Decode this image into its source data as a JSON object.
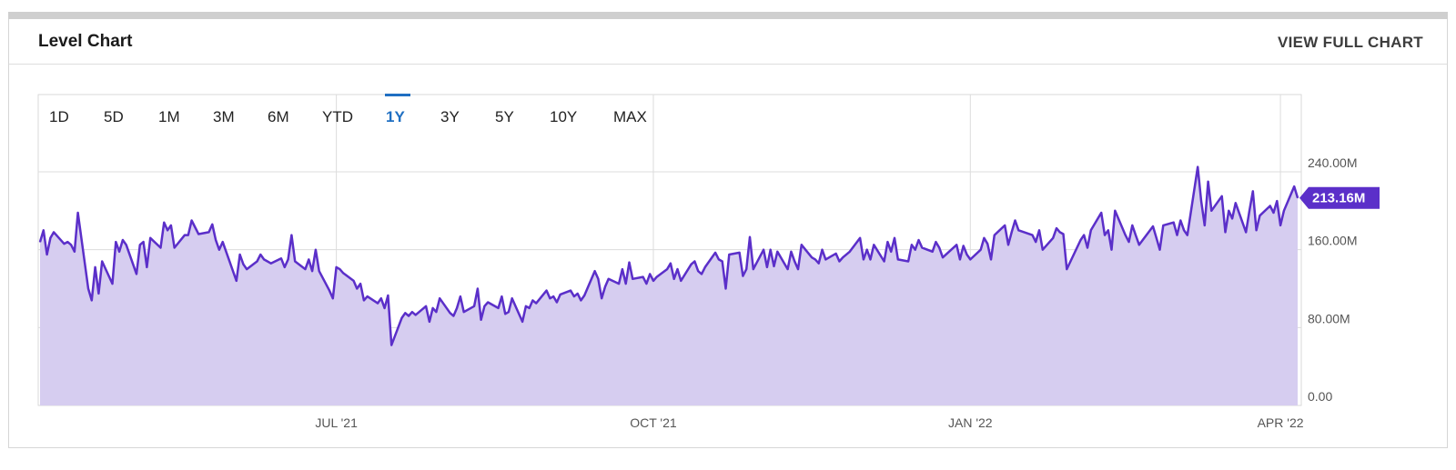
{
  "header": {
    "title": "Level Chart",
    "full_chart_label": "VIEW FULL CHART"
  },
  "range_buttons": [
    {
      "label": "1D",
      "active": false
    },
    {
      "label": "5D",
      "active": false
    },
    {
      "label": "1M",
      "active": false
    },
    {
      "label": "3M",
      "active": false
    },
    {
      "label": "6M",
      "active": false
    },
    {
      "label": "YTD",
      "active": false
    },
    {
      "label": "1Y",
      "active": true
    },
    {
      "label": "3Y",
      "active": false
    },
    {
      "label": "5Y",
      "active": false
    },
    {
      "label": "10Y",
      "active": false
    },
    {
      "label": "MAX",
      "active": false
    }
  ],
  "colors": {
    "line": "#5b2fc9",
    "fill": "#d6cdf0",
    "badge": "#5b2fc9",
    "active_range": "#1f6fc2",
    "grid": "#dcdcdc"
  },
  "chart_data": {
    "type": "area",
    "title": "",
    "xlabel": "",
    "ylabel": "",
    "ylim": [
      0,
      240000000
    ],
    "yticks": [
      {
        "value": 240000000,
        "label": "240.00M"
      },
      {
        "value": 160000000,
        "label": "160.00M"
      },
      {
        "value": 80000000,
        "label": "80.00M"
      },
      {
        "value": 0,
        "label": "0.00"
      }
    ],
    "xticks": [
      {
        "date": "2021-06-30",
        "label": "JUL '21"
      },
      {
        "date": "2021-09-30",
        "label": "OCT '21"
      },
      {
        "date": "2021-12-31",
        "label": "JAN '22"
      },
      {
        "date": "2022-03-31",
        "label": "APR '22"
      }
    ],
    "xlim": [
      "2021-04-05",
      "2022-04-05"
    ],
    "grid": true,
    "last_value_label": "213.16M",
    "series": [
      {
        "values": [
          [
            "2021-04-05",
            168
          ],
          [
            "2021-04-06",
            180
          ],
          [
            "2021-04-07",
            155
          ],
          [
            "2021-04-08",
            172
          ],
          [
            "2021-04-09",
            178
          ],
          [
            "2021-04-12",
            166
          ],
          [
            "2021-04-13",
            168
          ],
          [
            "2021-04-14",
            165
          ],
          [
            "2021-04-15",
            158
          ],
          [
            "2021-04-16",
            198
          ],
          [
            "2021-04-19",
            120
          ],
          [
            "2021-04-20",
            108
          ],
          [
            "2021-04-21",
            142
          ],
          [
            "2021-04-22",
            115
          ],
          [
            "2021-04-23",
            148
          ],
          [
            "2021-04-26",
            125
          ],
          [
            "2021-04-27",
            168
          ],
          [
            "2021-04-28",
            158
          ],
          [
            "2021-04-29",
            170
          ],
          [
            "2021-04-30",
            165
          ],
          [
            "2021-05-03",
            135
          ],
          [
            "2021-05-04",
            165
          ],
          [
            "2021-05-05",
            168
          ],
          [
            "2021-05-06",
            142
          ],
          [
            "2021-05-07",
            172
          ],
          [
            "2021-05-10",
            162
          ],
          [
            "2021-05-11",
            188
          ],
          [
            "2021-05-12",
            180
          ],
          [
            "2021-05-13",
            185
          ],
          [
            "2021-05-14",
            162
          ],
          [
            "2021-05-17",
            175
          ],
          [
            "2021-05-18",
            175
          ],
          [
            "2021-05-19",
            190
          ],
          [
            "2021-05-20",
            183
          ],
          [
            "2021-05-21",
            176
          ],
          [
            "2021-05-24",
            178
          ],
          [
            "2021-05-25",
            186
          ],
          [
            "2021-05-26",
            170
          ],
          [
            "2021-05-27",
            160
          ],
          [
            "2021-05-28",
            168
          ],
          [
            "2021-06-01",
            128
          ],
          [
            "2021-06-02",
            155
          ],
          [
            "2021-06-03",
            145
          ],
          [
            "2021-06-04",
            140
          ],
          [
            "2021-06-07",
            148
          ],
          [
            "2021-06-08",
            155
          ],
          [
            "2021-06-09",
            150
          ],
          [
            "2021-06-10",
            148
          ],
          [
            "2021-06-11",
            146
          ],
          [
            "2021-06-14",
            151
          ],
          [
            "2021-06-15",
            142
          ],
          [
            "2021-06-16",
            150
          ],
          [
            "2021-06-17",
            175
          ],
          [
            "2021-06-18",
            148
          ],
          [
            "2021-06-21",
            140
          ],
          [
            "2021-06-22",
            150
          ],
          [
            "2021-06-23",
            138
          ],
          [
            "2021-06-24",
            160
          ],
          [
            "2021-06-25",
            138
          ],
          [
            "2021-06-28",
            118
          ],
          [
            "2021-06-29",
            110
          ],
          [
            "2021-06-30",
            142
          ],
          [
            "2021-07-01",
            140
          ],
          [
            "2021-07-02",
            136
          ],
          [
            "2021-07-05",
            128
          ],
          [
            "2021-07-06",
            120
          ],
          [
            "2021-07-07",
            125
          ],
          [
            "2021-07-08",
            108
          ],
          [
            "2021-07-09",
            112
          ],
          [
            "2021-07-12",
            105
          ],
          [
            "2021-07-13",
            110
          ],
          [
            "2021-07-14",
            100
          ],
          [
            "2021-07-15",
            113
          ],
          [
            "2021-07-16",
            62
          ],
          [
            "2021-07-19",
            90
          ],
          [
            "2021-07-20",
            95
          ],
          [
            "2021-07-21",
            92
          ],
          [
            "2021-07-22",
            96
          ],
          [
            "2021-07-23",
            93
          ],
          [
            "2021-07-26",
            102
          ],
          [
            "2021-07-27",
            86
          ],
          [
            "2021-07-28",
            100
          ],
          [
            "2021-07-29",
            96
          ],
          [
            "2021-07-30",
            110
          ],
          [
            "2021-08-02",
            95
          ],
          [
            "2021-08-03",
            92
          ],
          [
            "2021-08-04",
            100
          ],
          [
            "2021-08-05",
            112
          ],
          [
            "2021-08-06",
            96
          ],
          [
            "2021-08-09",
            102
          ],
          [
            "2021-08-10",
            120
          ],
          [
            "2021-08-11",
            88
          ],
          [
            "2021-08-12",
            102
          ],
          [
            "2021-08-13",
            106
          ],
          [
            "2021-08-16",
            100
          ],
          [
            "2021-08-17",
            112
          ],
          [
            "2021-08-18",
            94
          ],
          [
            "2021-08-19",
            96
          ],
          [
            "2021-08-20",
            110
          ],
          [
            "2021-08-23",
            86
          ],
          [
            "2021-08-24",
            102
          ],
          [
            "2021-08-25",
            100
          ],
          [
            "2021-08-26",
            108
          ],
          [
            "2021-08-27",
            105
          ],
          [
            "2021-08-30",
            118
          ],
          [
            "2021-08-31",
            110
          ],
          [
            "2021-09-01",
            112
          ],
          [
            "2021-09-02",
            106
          ],
          [
            "2021-09-03",
            114
          ],
          [
            "2021-09-06",
            118
          ],
          [
            "2021-09-07",
            112
          ],
          [
            "2021-09-08",
            115
          ],
          [
            "2021-09-09",
            108
          ],
          [
            "2021-09-10",
            113
          ],
          [
            "2021-09-13",
            138
          ],
          [
            "2021-09-14",
            130
          ],
          [
            "2021-09-15",
            110
          ],
          [
            "2021-09-16",
            122
          ],
          [
            "2021-09-17",
            130
          ],
          [
            "2021-09-20",
            125
          ],
          [
            "2021-09-21",
            140
          ],
          [
            "2021-09-22",
            125
          ],
          [
            "2021-09-23",
            147
          ],
          [
            "2021-09-24",
            130
          ],
          [
            "2021-09-27",
            132
          ],
          [
            "2021-09-28",
            125
          ],
          [
            "2021-09-29",
            135
          ],
          [
            "2021-09-30",
            128
          ],
          [
            "2021-10-01",
            132
          ],
          [
            "2021-10-04",
            140
          ],
          [
            "2021-10-05",
            146
          ],
          [
            "2021-10-06",
            130
          ],
          [
            "2021-10-07",
            140
          ],
          [
            "2021-10-08",
            128
          ],
          [
            "2021-10-11",
            145
          ],
          [
            "2021-10-12",
            148
          ],
          [
            "2021-10-13",
            138
          ],
          [
            "2021-10-14",
            135
          ],
          [
            "2021-10-15",
            142
          ],
          [
            "2021-10-18",
            157
          ],
          [
            "2021-10-19",
            150
          ],
          [
            "2021-10-20",
            148
          ],
          [
            "2021-10-21",
            120
          ],
          [
            "2021-10-22",
            155
          ],
          [
            "2021-10-25",
            157
          ],
          [
            "2021-10-26",
            133
          ],
          [
            "2021-10-27",
            140
          ],
          [
            "2021-10-28",
            173
          ],
          [
            "2021-10-29",
            140
          ],
          [
            "2021-11-01",
            160
          ],
          [
            "2021-11-02",
            142
          ],
          [
            "2021-11-03",
            160
          ],
          [
            "2021-11-04",
            143
          ],
          [
            "2021-11-05",
            158
          ],
          [
            "2021-11-08",
            140
          ],
          [
            "2021-11-09",
            158
          ],
          [
            "2021-11-10",
            148
          ],
          [
            "2021-11-11",
            140
          ],
          [
            "2021-11-12",
            165
          ],
          [
            "2021-11-15",
            152
          ],
          [
            "2021-11-16",
            150
          ],
          [
            "2021-11-17",
            146
          ],
          [
            "2021-11-18",
            160
          ],
          [
            "2021-11-19",
            150
          ],
          [
            "2021-11-22",
            156
          ],
          [
            "2021-11-23",
            148
          ],
          [
            "2021-11-24",
            152
          ],
          [
            "2021-11-26",
            158
          ],
          [
            "2021-11-29",
            172
          ],
          [
            "2021-11-30",
            150
          ],
          [
            "2021-12-01",
            160
          ],
          [
            "2021-12-02",
            150
          ],
          [
            "2021-12-03",
            165
          ],
          [
            "2021-12-06",
            148
          ],
          [
            "2021-12-07",
            168
          ],
          [
            "2021-12-08",
            158
          ],
          [
            "2021-12-09",
            172
          ],
          [
            "2021-12-10",
            150
          ],
          [
            "2021-12-13",
            148
          ],
          [
            "2021-12-14",
            165
          ],
          [
            "2021-12-15",
            160
          ],
          [
            "2021-12-16",
            170
          ],
          [
            "2021-12-17",
            162
          ],
          [
            "2021-12-20",
            158
          ],
          [
            "2021-12-21",
            168
          ],
          [
            "2021-12-22",
            162
          ],
          [
            "2021-12-23",
            152
          ],
          [
            "2021-12-27",
            165
          ],
          [
            "2021-12-28",
            150
          ],
          [
            "2021-12-29",
            164
          ],
          [
            "2021-12-30",
            155
          ],
          [
            "2021-12-31",
            150
          ],
          [
            "2022-01-03",
            160
          ],
          [
            "2022-01-04",
            172
          ],
          [
            "2022-01-05",
            166
          ],
          [
            "2022-01-06",
            150
          ],
          [
            "2022-01-07",
            175
          ],
          [
            "2022-01-10",
            185
          ],
          [
            "2022-01-11",
            165
          ],
          [
            "2022-01-12",
            178
          ],
          [
            "2022-01-13",
            190
          ],
          [
            "2022-01-14",
            180
          ],
          [
            "2022-01-18",
            175
          ],
          [
            "2022-01-19",
            168
          ],
          [
            "2022-01-20",
            180
          ],
          [
            "2022-01-21",
            160
          ],
          [
            "2022-01-24",
            172
          ],
          [
            "2022-01-25",
            182
          ],
          [
            "2022-01-26",
            178
          ],
          [
            "2022-01-27",
            176
          ],
          [
            "2022-01-28",
            140
          ],
          [
            "2022-02-01",
            170
          ],
          [
            "2022-02-02",
            175
          ],
          [
            "2022-02-03",
            162
          ],
          [
            "2022-02-04",
            180
          ],
          [
            "2022-02-07",
            198
          ],
          [
            "2022-02-08",
            175
          ],
          [
            "2022-02-09",
            180
          ],
          [
            "2022-02-10",
            160
          ],
          [
            "2022-02-11",
            200
          ],
          [
            "2022-02-14",
            175
          ],
          [
            "2022-02-15",
            168
          ],
          [
            "2022-02-16",
            185
          ],
          [
            "2022-02-17",
            175
          ],
          [
            "2022-02-18",
            165
          ],
          [
            "2022-02-22",
            184
          ],
          [
            "2022-02-23",
            172
          ],
          [
            "2022-02-24",
            160
          ],
          [
            "2022-02-25",
            185
          ],
          [
            "2022-02-28",
            188
          ],
          [
            "2022-03-01",
            175
          ],
          [
            "2022-03-02",
            190
          ],
          [
            "2022-03-03",
            180
          ],
          [
            "2022-03-04",
            175
          ],
          [
            "2022-03-07",
            245
          ],
          [
            "2022-03-08",
            210
          ],
          [
            "2022-03-09",
            185
          ],
          [
            "2022-03-10",
            230
          ],
          [
            "2022-03-11",
            200
          ],
          [
            "2022-03-14",
            215
          ],
          [
            "2022-03-15",
            178
          ],
          [
            "2022-03-16",
            200
          ],
          [
            "2022-03-17",
            192
          ],
          [
            "2022-03-18",
            208
          ],
          [
            "2022-03-21",
            178
          ],
          [
            "2022-03-22",
            200
          ],
          [
            "2022-03-23",
            220
          ],
          [
            "2022-03-24",
            180
          ],
          [
            "2022-03-25",
            195
          ],
          [
            "2022-03-28",
            205
          ],
          [
            "2022-03-29",
            198
          ],
          [
            "2022-03-30",
            210
          ],
          [
            "2022-03-31",
            185
          ],
          [
            "2022-04-01",
            200
          ],
          [
            "2022-04-04",
            225
          ],
          [
            "2022-04-05",
            213.16
          ]
        ]
      }
    ]
  }
}
